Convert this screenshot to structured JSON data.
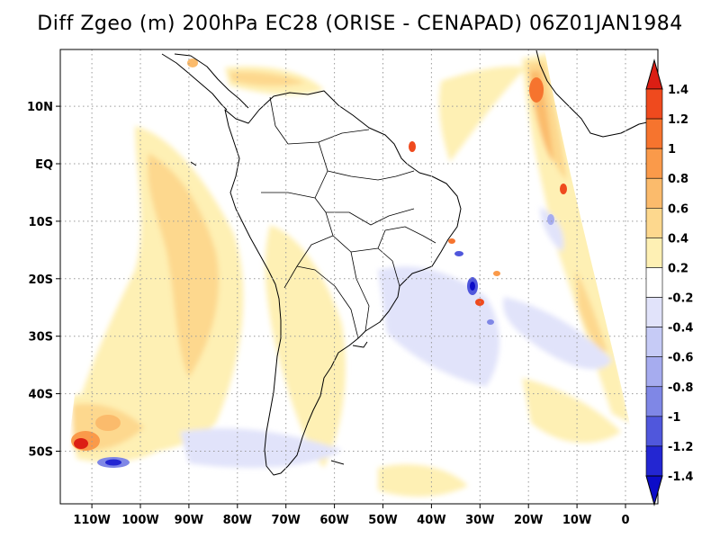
{
  "title": "Diff Zgeo (m) 200hPa EC28 (ORISE - CENAPAD) 06Z01JAN1984",
  "chart_data": {
    "type": "heatmap",
    "variable": "Diff Zgeo (m)",
    "level": "200hPa",
    "model": "EC28",
    "comparison": "ORISE - CENAPAD",
    "time": "06Z01JAN1984",
    "grid": true,
    "lon_range": [
      -117,
      7
    ],
    "lat_range": [
      -60,
      17
    ],
    "x_ticks": [
      {
        "lon": -110,
        "label": "110W"
      },
      {
        "lon": -100,
        "label": "100W"
      },
      {
        "lon": -90,
        "label": "90W"
      },
      {
        "lon": -80,
        "label": "80W"
      },
      {
        "lon": -70,
        "label": "70W"
      },
      {
        "lon": -60,
        "label": "60W"
      },
      {
        "lon": -50,
        "label": "50W"
      },
      {
        "lon": -40,
        "label": "40W"
      },
      {
        "lon": -30,
        "label": "30W"
      },
      {
        "lon": -20,
        "label": "20W"
      },
      {
        "lon": -10,
        "label": "10W"
      },
      {
        "lon": 0,
        "label": "0"
      }
    ],
    "y_ticks": [
      {
        "lat": 10,
        "label": "10N"
      },
      {
        "lat": 0,
        "label": "EQ"
      },
      {
        "lat": -10,
        "label": "10S"
      },
      {
        "lat": -20,
        "label": "20S"
      },
      {
        "lat": -30,
        "label": "30S"
      },
      {
        "lat": -40,
        "label": "40S"
      },
      {
        "lat": -50,
        "label": "50S"
      }
    ],
    "colorbar": {
      "orientation": "vertical",
      "position": "right",
      "levels": [
        "1.4",
        "1.2",
        "1",
        "0.8",
        "0.6",
        "0.4",
        "0.2",
        "-0.2",
        "-0.4",
        "-0.6",
        "-0.8",
        "-1",
        "-1.2",
        "-1.4"
      ],
      "colors": [
        "#dc1e14",
        "#ef4a1e",
        "#f6742e",
        "#fa9a4a",
        "#fbbb6c",
        "#fdd88e",
        "#fef0b4",
        "#ffffff",
        "#e1e3fa",
        "#c6cbf6",
        "#a6acef",
        "#7f87e6",
        "#5057dc",
        "#2326d2",
        "#0c0cc8"
      ]
    },
    "features": [
      {
        "name": "positive-anomaly-southeast-pacific",
        "lon": -112,
        "lat": -48,
        "value": 1.4
      },
      {
        "name": "negative-anomaly-southeast-pacific",
        "lon": -106,
        "lat": -52,
        "value": -1.4
      },
      {
        "name": "positive-band-west-africa-coast",
        "lon": -20,
        "lat": 5,
        "value": 1.0
      },
      {
        "name": "mixed-anomalies-south-atlantic",
        "lon": -32,
        "lat": -20,
        "value": -1.2
      }
    ]
  }
}
